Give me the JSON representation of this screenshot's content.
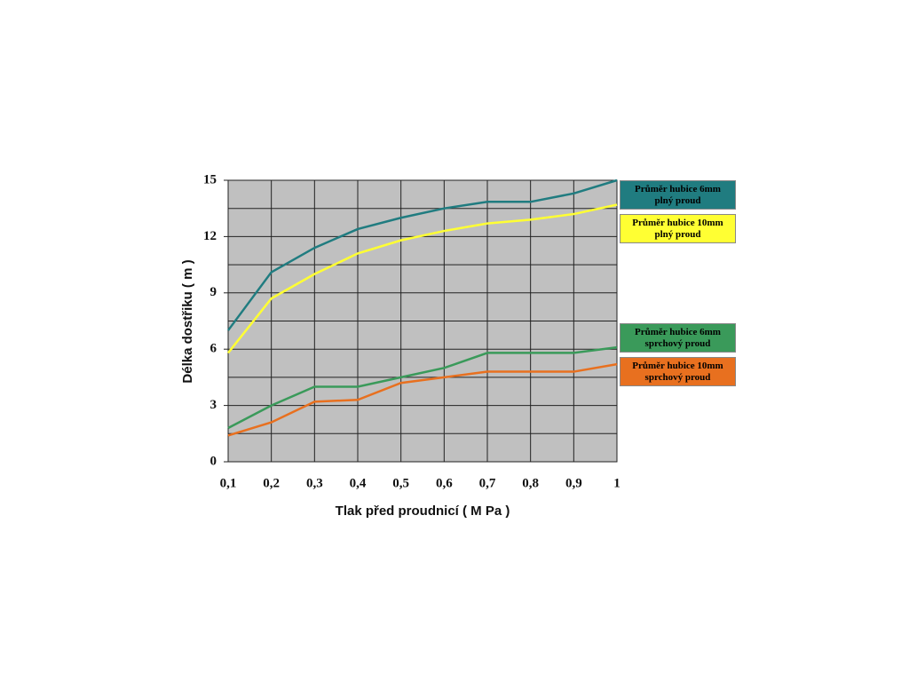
{
  "chart_data": {
    "type": "line",
    "x_label": "Tlak před proudnicí  ( M Pa )",
    "y_label": "Délka dostřiku ( m )",
    "x": [
      0.1,
      0.2,
      0.3,
      0.4,
      0.5,
      0.6,
      0.7,
      0.8,
      0.9,
      1
    ],
    "xlim": [
      0.1,
      1
    ],
    "xticks": [
      {
        "value": 0.1,
        "label": "0,1"
      },
      {
        "value": 0.2,
        "label": "0,2"
      },
      {
        "value": 0.3,
        "label": "0,3"
      },
      {
        "value": 0.4,
        "label": "0,4"
      },
      {
        "value": 0.5,
        "label": "0,5"
      },
      {
        "value": 0.6,
        "label": "0,6"
      },
      {
        "value": 0.7,
        "label": "0,7"
      },
      {
        "value": 0.8,
        "label": "0,8"
      },
      {
        "value": 0.9,
        "label": "0,9"
      },
      1
    ],
    "ylim": [
      0,
      15
    ],
    "yticks": [
      0,
      3,
      6,
      9,
      12,
      15
    ],
    "grid": true,
    "background": "#c0c0c0",
    "series": [
      {
        "name": "Průměr hubice 6mm\nplný proud",
        "color": "#207c80",
        "values": [
          7.0,
          10.1,
          11.4,
          12.4,
          13.0,
          13.5,
          13.85,
          13.85,
          14.3,
          15.0
        ]
      },
      {
        "name": "Průměr hubice 10mm\nplný proud",
        "color": "#ffff33",
        "values": [
          5.8,
          8.7,
          10.0,
          11.1,
          11.8,
          12.3,
          12.7,
          12.9,
          13.2,
          13.7
        ]
      },
      {
        "name": "Průměr hubice 6mm\nsprchový proud",
        "color": "#3a9a5a",
        "values": [
          1.8,
          3.0,
          4.0,
          4.0,
          4.5,
          5.0,
          5.8,
          5.8,
          5.8,
          6.1
        ]
      },
      {
        "name": "Průměr hubice 10mm\nsprchový proud",
        "color": "#e8701f",
        "values": [
          1.4,
          2.1,
          3.2,
          3.3,
          4.2,
          4.5,
          4.8,
          4.8,
          4.8,
          5.2
        ]
      }
    ]
  }
}
